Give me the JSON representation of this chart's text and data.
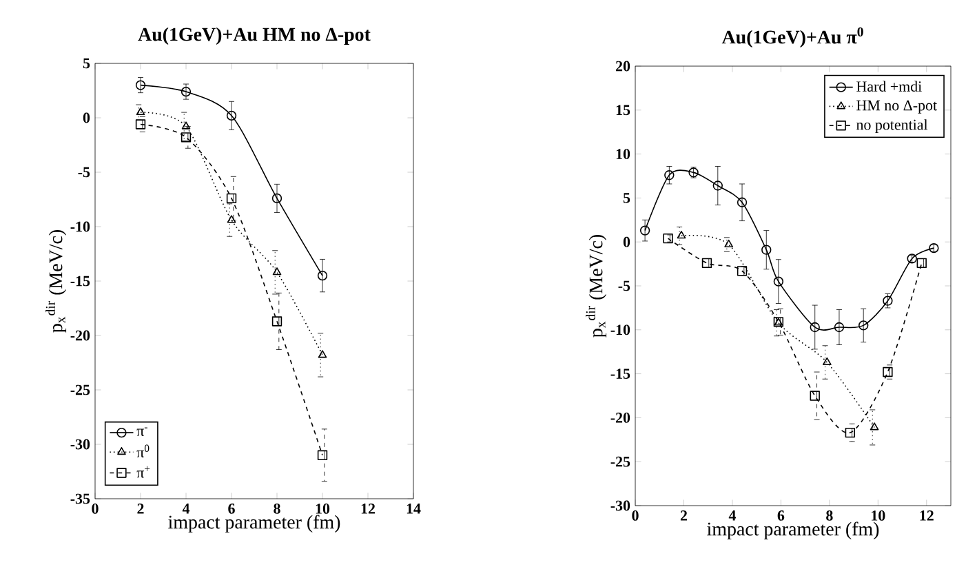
{
  "chart_data": [
    {
      "type": "line",
      "title": "Au(1GeV)+Au HM no Δ-pot",
      "xlabel": "impact parameter (fm)",
      "ylabel": "p$_{x}$$^{dir}$ (MeV/c)",
      "xlim": [
        0,
        14
      ],
      "xticks": [
        0,
        2,
        4,
        6,
        8,
        10,
        12,
        14
      ],
      "ylim": [
        -35,
        5
      ],
      "yticks": [
        -35,
        -30,
        -25,
        -20,
        -15,
        -10,
        -5,
        0,
        5
      ],
      "legend": "bottom left",
      "grid": false,
      "series": [
        {
          "name": "π$^{-}$",
          "color": "#000000",
          "marker": "circle",
          "line_style": "solid",
          "x": [
            2,
            4,
            6,
            8,
            10
          ],
          "values": [
            3.0,
            2.4,
            0.2,
            -7.4,
            -14.5
          ],
          "errors": [
            0.7,
            0.7,
            1.3,
            1.3,
            1.5
          ]
        },
        {
          "name": "π$^{0}$",
          "color": "#000000",
          "marker": "triangle",
          "line_style": "dotted",
          "x": [
            2,
            4,
            6,
            8,
            10
          ],
          "values": [
            0.5,
            -0.8,
            -9.4,
            -14.2,
            -21.8
          ],
          "errors": [
            0.7,
            1.3,
            1.5,
            2.0,
            2.0
          ]
        },
        {
          "name": "π$^{+}$",
          "color": "#000000",
          "marker": "square",
          "line_style": "dashed",
          "x": [
            2,
            4,
            6,
            8,
            10
          ],
          "values": [
            -0.6,
            -1.8,
            -7.4,
            -18.7,
            -31.0
          ],
          "errors": [
            0.7,
            1.0,
            2.0,
            2.6,
            2.4
          ]
        }
      ]
    },
    {
      "type": "line",
      "title": "Au(1GeV)+Au π$^{0}$",
      "xlabel": "impact parameter (fm)",
      "ylabel": "p$_{x}$$^{dir}$ (MeV/c)",
      "xlim": [
        0,
        13
      ],
      "xticks": [
        0,
        2,
        4,
        6,
        8,
        10,
        12
      ],
      "ylim": [
        -30,
        20
      ],
      "yticks": [
        -30,
        -25,
        -20,
        -15,
        -10,
        -5,
        0,
        5,
        10,
        15,
        20
      ],
      "legend": "top right",
      "grid": false,
      "series": [
        {
          "name": "Hard +mdi",
          "color": "#000000",
          "marker": "circle",
          "line_style": "solid",
          "x": [
            0.4,
            1.4,
            2.4,
            3.4,
            4.4,
            5.4,
            5.9,
            7.4,
            8.4,
            9.4,
            10.4,
            11.4,
            12.3
          ],
          "values": [
            1.3,
            7.6,
            7.9,
            6.4,
            4.5,
            -0.9,
            -4.5,
            -9.7,
            -9.7,
            -9.5,
            -6.7,
            -1.9,
            -0.7
          ],
          "errors": [
            1.2,
            1.0,
            0.6,
            2.2,
            2.1,
            2.2,
            2.5,
            2.5,
            2.0,
            1.9,
            0.8,
            0.4,
            0.4
          ]
        },
        {
          "name": "HM no Δ-pot",
          "color": "#000000",
          "marker": "triangle",
          "line_style": "dotted",
          "x": [
            1.9,
            3.85,
            5.9,
            7.9,
            9.85
          ],
          "values": [
            0.7,
            -0.3,
            -9.2,
            -13.7,
            -21.1
          ],
          "errors": [
            1.0,
            0.8,
            1.5,
            1.9,
            2.0
          ]
        },
        {
          "name": "no potential",
          "color": "#000000",
          "marker": "square",
          "line_style": "dashed",
          "x": [
            1.35,
            2.95,
            4.4,
            5.9,
            7.4,
            8.85,
            10.4,
            11.8
          ],
          "values": [
            0.4,
            -2.4,
            -3.3,
            -9.1,
            -17.5,
            -21.7,
            -14.8,
            -2.4
          ],
          "errors": [
            0.4,
            0.5,
            0.5,
            1.5,
            2.7,
            1.0,
            0.8,
            0.5
          ]
        }
      ]
    }
  ]
}
